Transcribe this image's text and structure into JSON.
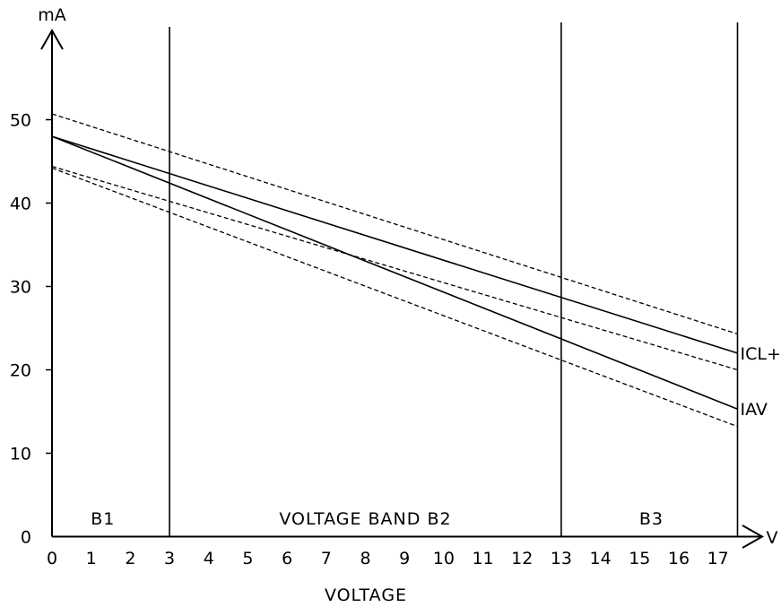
{
  "chart_data": {
    "type": "line",
    "ylabel": "mA",
    "xlabel_arrow": "V",
    "xlabel": "VOLTAGE",
    "xlim": [
      0,
      17.5
    ],
    "ylim": [
      0,
      60
    ],
    "x_ticks": [
      0,
      1,
      2,
      3,
      4,
      5,
      6,
      7,
      8,
      9,
      10,
      11,
      12,
      13,
      14,
      15,
      16,
      17
    ],
    "y_ticks": [
      0,
      10,
      20,
      30,
      40,
      50
    ],
    "band_boundaries": [
      3,
      13,
      17.5
    ],
    "bands": [
      {
        "label": "B1",
        "x": 1.3
      },
      {
        "label": "VOLTAGE BAND B2",
        "x": 8
      },
      {
        "label": "B3",
        "x": 15.3
      }
    ],
    "series": [
      {
        "name": "ICL+R",
        "style": "solid",
        "x": [
          0,
          17.5
        ],
        "y": [
          48,
          22
        ]
      },
      {
        "name": "IAV",
        "style": "solid",
        "x": [
          0,
          17.5
        ],
        "y": [
          48,
          15.3
        ]
      },
      {
        "style": "dashed",
        "x": [
          0,
          17.5
        ],
        "y": [
          50.7,
          24.3
        ]
      },
      {
        "style": "dashed",
        "x": [
          0,
          17.5
        ],
        "y": [
          44.4,
          20
        ]
      },
      {
        "style": "dashed",
        "x": [
          0,
          17.5
        ],
        "y": [
          44.2,
          13.2
        ]
      }
    ],
    "grid": false,
    "legend": "inline labels at right end of lines"
  }
}
